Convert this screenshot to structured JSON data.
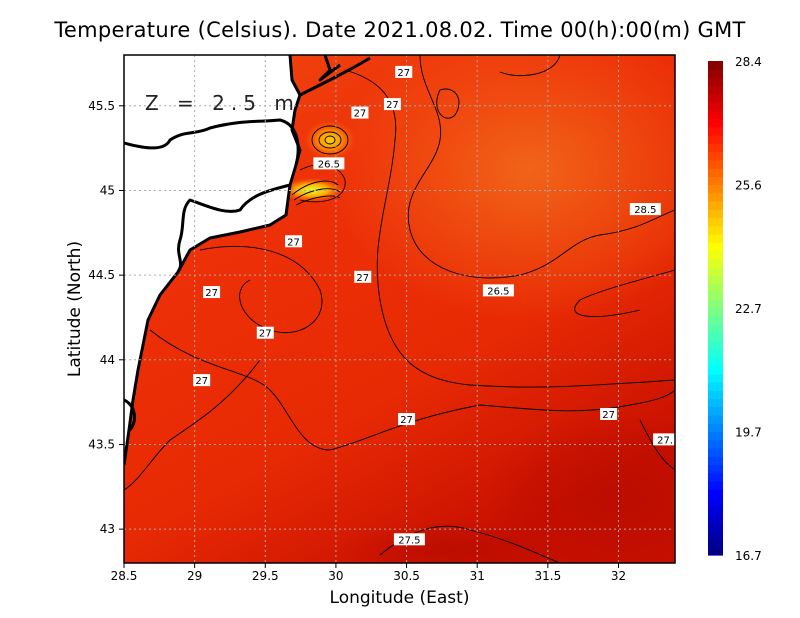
{
  "chart_data": {
    "type": "heatmap",
    "title": "Temperature (Celsius). Date 2021.08.02. Time 00(h):00(m)  GMT",
    "annotation": "Z = 2.5 m",
    "xlabel": "Longitude (East)",
    "ylabel": "Latitude (North)",
    "xlim": [
      28.5,
      32.4
    ],
    "ylim": [
      42.8,
      45.8
    ],
    "xticks": [
      28.5,
      29,
      29.5,
      30,
      30.5,
      31,
      31.5,
      32
    ],
    "xtick_labels": [
      "28.5",
      "29",
      "29.5",
      "30",
      "30.5",
      "31",
      "31.5",
      "32"
    ],
    "yticks": [
      43,
      43.5,
      44,
      44.5,
      45,
      45.5
    ],
    "ytick_labels": [
      "43",
      "43.5",
      "44",
      "44.5",
      "45",
      "45.5"
    ],
    "grid": true,
    "colorbar": {
      "min": 16.7,
      "max": 28.4,
      "tick_labels": [
        "28.4",
        "25.6",
        "22.7",
        "19.7",
        "16.7"
      ],
      "colormap": [
        "#00007f",
        "#0000ff",
        "#0080ff",
        "#00ffff",
        "#80ff80",
        "#ffff00",
        "#ff8000",
        "#ff0000",
        "#7f0000"
      ]
    },
    "contour_labels": [
      {
        "text": "27",
        "lon": 30.48,
        "lat": 45.7
      },
      {
        "text": "27",
        "lon": 30.4,
        "lat": 45.51
      },
      {
        "text": "27",
        "lon": 30.17,
        "lat": 45.46
      },
      {
        "text": "26.5",
        "lon": 29.95,
        "lat": 45.16
      },
      {
        "text": "27",
        "lon": 29.7,
        "lat": 44.7
      },
      {
        "text": "27",
        "lon": 30.19,
        "lat": 44.49
      },
      {
        "text": "27",
        "lon": 29.12,
        "lat": 44.4
      },
      {
        "text": "27",
        "lon": 29.5,
        "lat": 44.16
      },
      {
        "text": "26.5",
        "lon": 31.15,
        "lat": 44.41
      },
      {
        "text": "28.5",
        "lon": 32.19,
        "lat": 44.89
      },
      {
        "text": "27",
        "lon": 29.05,
        "lat": 43.88
      },
      {
        "text": "27",
        "lon": 30.5,
        "lat": 43.65
      },
      {
        "text": "27",
        "lon": 31.93,
        "lat": 43.68
      },
      {
        "text": "27.",
        "lon": 32.33,
        "lat": 43.53
      },
      {
        "text": "27.5",
        "lon": 30.52,
        "lat": 42.94
      }
    ]
  }
}
